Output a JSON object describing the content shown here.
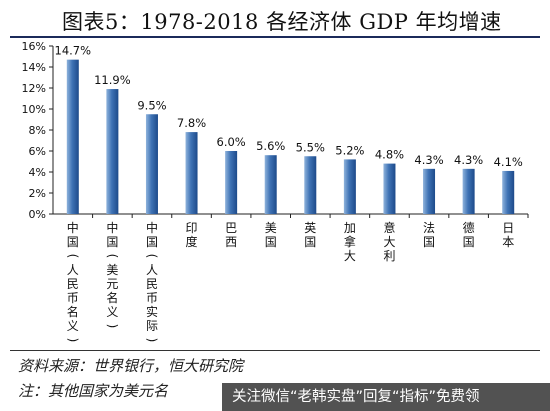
{
  "title": "图表5：1978-2018 各经济体 GDP 年均增速",
  "source": "资料来源：世界银行，恒大研究院",
  "note": "注：其他国家为美元名",
  "watermark_banner": "关注微信“老韩实盘”回复“指标”免费领",
  "colors": {
    "bar_light": "#8fb3dc",
    "bar_mid": "#3f73b5",
    "bar_dark": "#1d4a8a",
    "title_rule": "#1b2a5a"
  },
  "chart_data": {
    "type": "bar",
    "title": "1978-2018 各经济体 GDP 年均增速",
    "categories": [
      "中国(人民币名义)",
      "中国(美元名义)",
      "中国(人民币实际)",
      "印度",
      "巴西",
      "美国",
      "英国",
      "加拿大",
      "意大利",
      "法国",
      "德国",
      "日本"
    ],
    "category_labels": [
      [
        "中",
        "国",
        "(",
        "人",
        "民",
        "币",
        "名",
        "义",
        ")"
      ],
      [
        "中",
        "国",
        "(",
        "美",
        "元",
        "名",
        "义",
        ")"
      ],
      [
        "中",
        "国",
        "(",
        "人",
        "民",
        "币",
        "实",
        "际",
        ")"
      ],
      [
        "印",
        "度"
      ],
      [
        "巴",
        "西"
      ],
      [
        "美",
        "国"
      ],
      [
        "英",
        "国"
      ],
      [
        "加",
        "拿",
        "大"
      ],
      [
        "意",
        "大",
        "利"
      ],
      [
        "法",
        "国"
      ],
      [
        "德",
        "国"
      ],
      [
        "日",
        "本"
      ]
    ],
    "values": [
      14.7,
      11.9,
      9.5,
      7.8,
      6.0,
      5.6,
      5.5,
      5.2,
      4.8,
      4.3,
      4.3,
      4.1
    ],
    "value_labels": [
      "14.7%",
      "11.9%",
      "9.5%",
      "7.8%",
      "6.0%",
      "5.6%",
      "5.5%",
      "5.2%",
      "4.8%",
      "4.3%",
      "4.3%",
      "4.1%"
    ],
    "y_ticks": [
      "0%",
      "2%",
      "4%",
      "6%",
      "8%",
      "10%",
      "12%",
      "14%",
      "16%"
    ],
    "ylim": [
      0,
      16
    ],
    "unit": "%",
    "grid": false,
    "legend": "none"
  }
}
